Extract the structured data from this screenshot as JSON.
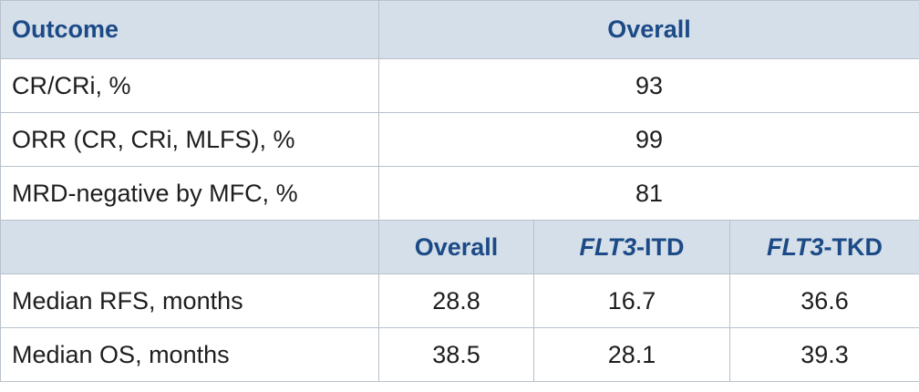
{
  "header": {
    "outcome": "Outcome",
    "overall": "Overall"
  },
  "rows": [
    {
      "label": "CR/CRi, %",
      "value": 93
    },
    {
      "label": "ORR (CR, CRi, MLFS), %",
      "value": 99
    },
    {
      "label": "MRD-negative by MFC, %",
      "value": 81
    }
  ],
  "subheader": [
    {
      "text": "Overall"
    },
    {
      "italic": "FLT3",
      "text": "-ITD"
    },
    {
      "italic": "FLT3",
      "text": "-TKD"
    }
  ],
  "subrows": [
    {
      "label": "Median RFS, months",
      "values": [
        28.8,
        16.7,
        36.6
      ]
    },
    {
      "label": "Median OS, months",
      "values": [
        38.5,
        28.1,
        39.3
      ]
    }
  ]
}
